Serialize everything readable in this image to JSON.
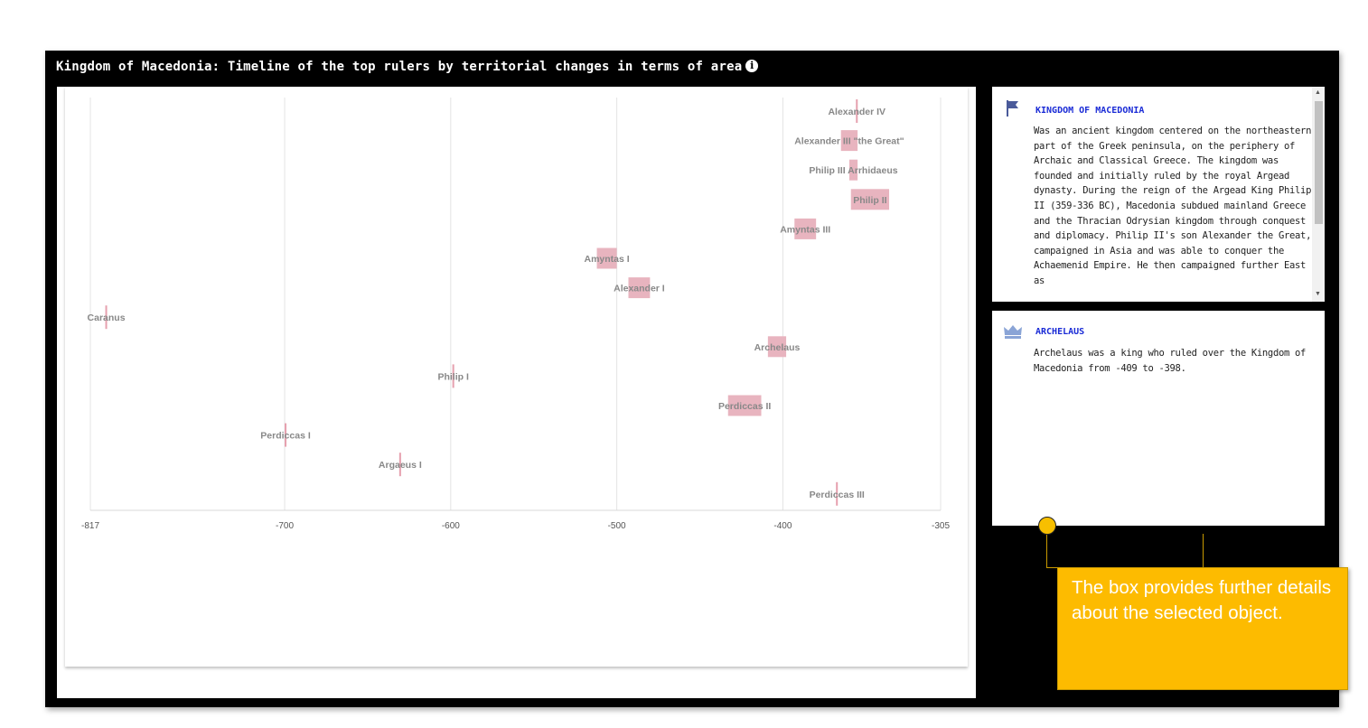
{
  "title": "Kingdom of Macedonia: Timeline of the top rulers by territorial changes in terms of area",
  "info_icon": "info-icon",
  "chart_data": {
    "type": "scatter",
    "description_kind": "timeline of reigns",
    "xlim": [
      -817,
      -305
    ],
    "x_ticks": [
      "-817",
      "-700",
      "-600",
      "-500",
      "-400",
      "-305"
    ],
    "x_tick_values": [
      -817,
      -700,
      -600,
      -500,
      -400,
      -305
    ],
    "grid": true,
    "bar_color": "#e8b4bf",
    "rulers": [
      {
        "name": "Alexander IV",
        "start": -356,
        "end": -355,
        "row": 0
      },
      {
        "name": "Alexander III \"the Great\"",
        "start": -365,
        "end": -355,
        "row": 1
      },
      {
        "name": "Philip III Arrhidaeus",
        "start": -360,
        "end": -355,
        "row": 2
      },
      {
        "name": "Philip II",
        "start": -359,
        "end": -336,
        "row": 3
      },
      {
        "name": "Amyntas III",
        "start": -393,
        "end": -380,
        "row": 4
      },
      {
        "name": "Amyntas I",
        "start": -512,
        "end": -500,
        "row": 5
      },
      {
        "name": "Alexander I",
        "start": -493,
        "end": -480,
        "row": 6
      },
      {
        "name": "Caranus",
        "start": -808,
        "end": -807,
        "row": 7
      },
      {
        "name": "Archelaus",
        "start": -409,
        "end": -398,
        "row": 8
      },
      {
        "name": "Philip I",
        "start": -599,
        "end": -598,
        "row": 9
      },
      {
        "name": "Perdiccas II",
        "start": -433,
        "end": -413,
        "row": 10
      },
      {
        "name": "Perdiccas I",
        "start": -700,
        "end": -699,
        "row": 11
      },
      {
        "name": "Argaeus I",
        "start": -631,
        "end": -630,
        "row": 12
      },
      {
        "name": "Perdiccas III",
        "start": -368,
        "end": -367,
        "row": 13
      }
    ]
  },
  "kingdom_panel": {
    "icon": "flag-icon",
    "heading": "KINGDOM OF MACEDONIA",
    "text": "Was an ancient kingdom centered on the northeastern part of the Greek peninsula, on the periphery of Archaic and Classical Greece. The kingdom was founded and initially ruled by the royal Argead dynasty. During the reign of the Argead King Philip II (359-336 BC), Macedonia subdued mainland Greece and the Thracian Odrysian kingdom through conquest and diplomacy. Philip II's son Alexander the Great, campaigned in Asia and was able to conquer the Achaemenid Empire. He then campaigned further East as"
  },
  "ruler_panel": {
    "icon": "crown-icon",
    "heading": "ARCHELAUS",
    "text": "Archelaus was a king who ruled over the Kingdom of Macedonia from -409 to -398."
  },
  "callout": {
    "text": "The box provides further details about the selected object.",
    "color": "#fdbb00"
  }
}
